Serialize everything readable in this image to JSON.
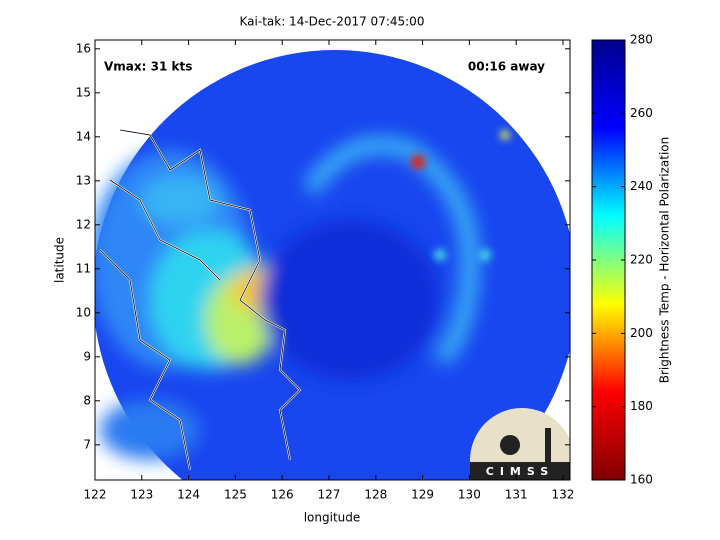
{
  "chart_data": {
    "type": "image",
    "title": "Kai-tak: 14-Dec-2017 07:45:00",
    "xlabel": "longitude",
    "ylabel": "latitude",
    "xlim": [
      122,
      132.15
    ],
    "ylim": [
      6.2,
      16.2
    ],
    "xticks": [
      122,
      123,
      124,
      125,
      126,
      127,
      128,
      129,
      130,
      131,
      132
    ],
    "yticks": [
      7,
      8,
      9,
      10,
      11,
      12,
      13,
      14,
      15,
      16
    ],
    "annotations": [
      "Vmax: 31 kts",
      "00:16 away"
    ],
    "logo": "CIMSS",
    "colorbar": {
      "label": "Brightness Temp - Horizontal Polarization",
      "lim": [
        160,
        280
      ],
      "ticks": [
        160,
        180,
        200,
        220,
        240,
        260,
        280
      ],
      "colormap": "jet"
    }
  }
}
